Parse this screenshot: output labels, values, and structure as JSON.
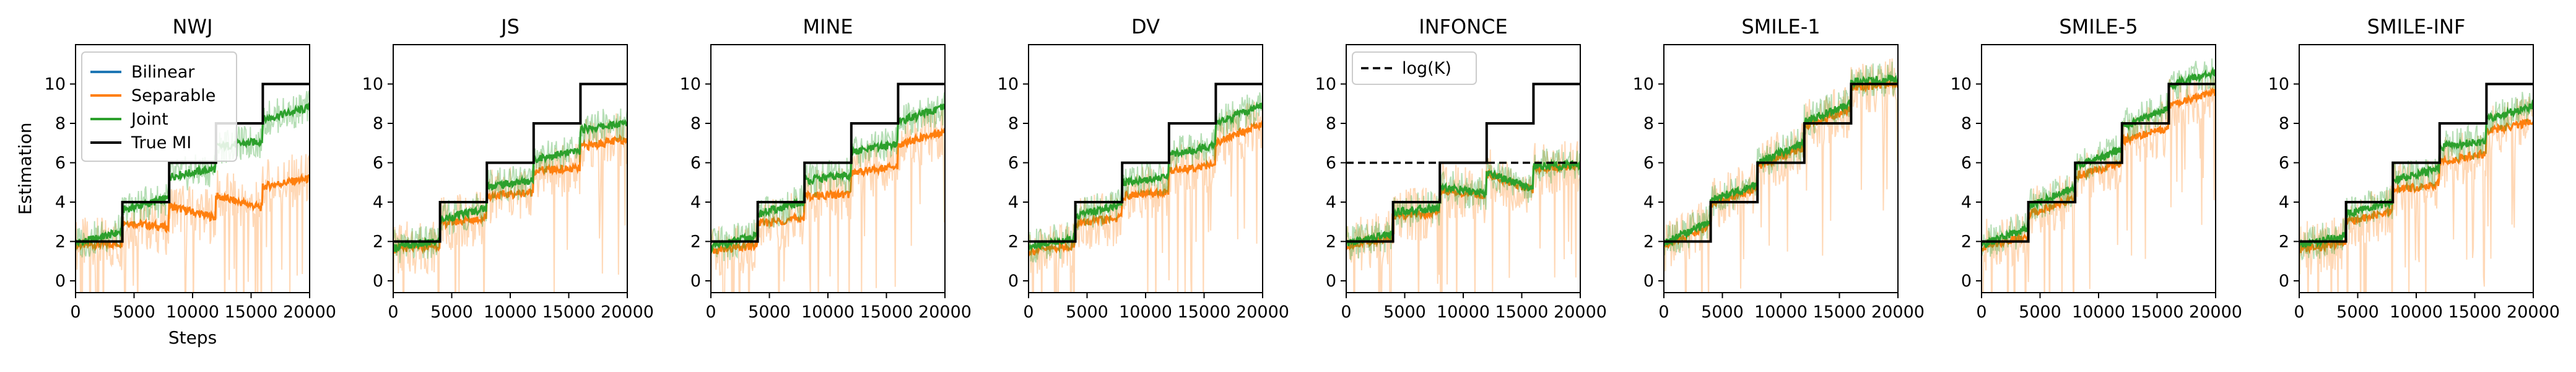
{
  "chart_data": {
    "type": "line",
    "shared": {
      "ylabel": "Estimation",
      "xlabel": "Steps",
      "xlim": [
        0,
        20000
      ],
      "ylim": [
        -0.6,
        12
      ],
      "xticks": [
        0,
        5000,
        10000,
        15000,
        20000
      ],
      "xtick_labels": [
        "0",
        "5000",
        "10000",
        "15000",
        "20000"
      ],
      "yticks": [
        0,
        2,
        4,
        6,
        8,
        10
      ],
      "ytick_labels": [
        "0",
        "2",
        "4",
        "6",
        "8",
        "10"
      ],
      "true_mi": {
        "name": "True MI",
        "x": [
          0,
          4000,
          4000,
          8000,
          8000,
          12000,
          12000,
          16000,
          16000,
          20000
        ],
        "y": [
          2,
          2,
          4,
          4,
          6,
          6,
          8,
          8,
          10,
          10
        ]
      },
      "colors": {
        "bilinear": "#1f77b4",
        "separable": "#ff7f0e",
        "joint": "#2ca02c",
        "true_mi": "#000000"
      }
    },
    "legend": [
      {
        "key": "bilinear",
        "label": "Bilinear"
      },
      {
        "key": "separable",
        "label": "Separable"
      },
      {
        "key": "joint",
        "label": "Joint"
      },
      {
        "key": "true_mi",
        "label": "True MI"
      }
    ],
    "panels": [
      {
        "title": "NWJ",
        "series": [
          {
            "name": "Separable",
            "color": "#ff7f0e",
            "x": [
              0,
              4000,
              8000,
              12000,
              16000,
              20000
            ],
            "y": [
              1.8,
              3.0,
              3.8,
              4.3,
              4.8,
              5.2
            ]
          },
          {
            "name": "Joint",
            "color": "#2ca02c",
            "x": [
              0,
              4000,
              8000,
              12000,
              16000,
              20000
            ],
            "y": [
              1.9,
              3.6,
              5.3,
              6.8,
              8.2,
              8.8
            ]
          }
        ]
      },
      {
        "title": "JS",
        "series": [
          {
            "name": "Separable",
            "color": "#ff7f0e",
            "x": [
              0,
              4000,
              8000,
              12000,
              16000,
              20000
            ],
            "y": [
              1.6,
              2.9,
              4.3,
              5.6,
              6.8,
              7.2
            ]
          },
          {
            "name": "Joint",
            "color": "#2ca02c",
            "x": [
              0,
              4000,
              8000,
              12000,
              16000,
              20000
            ],
            "y": [
              1.7,
              3.1,
              4.8,
              6.2,
              7.7,
              8.0
            ]
          }
        ]
      },
      {
        "title": "MINE",
        "series": [
          {
            "name": "Separable",
            "color": "#ff7f0e",
            "x": [
              0,
              4000,
              8000,
              12000,
              16000,
              20000
            ],
            "y": [
              1.5,
              2.9,
              4.3,
              5.5,
              6.9,
              7.6
            ]
          },
          {
            "name": "Joint",
            "color": "#2ca02c",
            "x": [
              0,
              4000,
              8000,
              12000,
              16000,
              20000
            ],
            "y": [
              1.7,
              3.4,
              5.1,
              6.5,
              8.1,
              8.8
            ]
          }
        ]
      },
      {
        "title": "DV",
        "series": [
          {
            "name": "Separable",
            "color": "#ff7f0e",
            "x": [
              0,
              4000,
              8000,
              12000,
              16000,
              20000
            ],
            "y": [
              1.5,
              2.9,
              4.3,
              5.6,
              7.0,
              8.0
            ]
          },
          {
            "name": "Joint",
            "color": "#2ca02c",
            "x": [
              0,
              4000,
              8000,
              12000,
              16000,
              20000
            ],
            "y": [
              1.7,
              3.3,
              5.0,
              6.4,
              8.0,
              8.9
            ]
          }
        ]
      },
      {
        "title": "INFONCE",
        "reference": {
          "label": "log(K)",
          "y": 6.0
        },
        "series": [
          {
            "name": "Separable",
            "color": "#ff7f0e",
            "x": [
              0,
              4000,
              8000,
              12000,
              16000,
              20000
            ],
            "y": [
              1.8,
              3.3,
              4.6,
              5.4,
              5.7,
              5.8
            ]
          },
          {
            "name": "Joint",
            "color": "#2ca02c",
            "x": [
              0,
              4000,
              8000,
              12000,
              16000,
              20000
            ],
            "y": [
              1.9,
              3.5,
              4.8,
              5.5,
              5.8,
              5.9
            ]
          }
        ]
      },
      {
        "title": "SMILE-1",
        "series": [
          {
            "name": "Separable",
            "color": "#ff7f0e",
            "x": [
              0,
              4000,
              8000,
              12000,
              16000,
              20000
            ],
            "y": [
              1.8,
              3.9,
              5.8,
              7.9,
              9.8,
              10.0
            ]
          },
          {
            "name": "Joint",
            "color": "#2ca02c",
            "x": [
              0,
              4000,
              8000,
              12000,
              16000,
              20000
            ],
            "y": [
              1.9,
              4.1,
              6.0,
              8.1,
              10.1,
              10.3
            ]
          }
        ]
      },
      {
        "title": "SMILE-5",
        "series": [
          {
            "name": "Separable",
            "color": "#ff7f0e",
            "x": [
              0,
              4000,
              8000,
              12000,
              16000,
              20000
            ],
            "y": [
              1.7,
              3.4,
              5.3,
              7.1,
              8.9,
              9.6
            ]
          },
          {
            "name": "Joint",
            "color": "#2ca02c",
            "x": [
              0,
              4000,
              8000,
              12000,
              16000,
              20000
            ],
            "y": [
              1.8,
              3.8,
              5.8,
              7.8,
              9.9,
              10.6
            ]
          }
        ]
      },
      {
        "title": "SMILE-INF",
        "series": [
          {
            "name": "Separable",
            "color": "#ff7f0e",
            "x": [
              0,
              4000,
              8000,
              12000,
              16000,
              20000
            ],
            "y": [
              1.6,
              3.0,
              4.6,
              6.0,
              7.6,
              8.1
            ]
          },
          {
            "name": "Joint",
            "color": "#2ca02c",
            "x": [
              0,
              4000,
              8000,
              12000,
              16000,
              20000
            ],
            "y": [
              1.8,
              3.4,
              5.1,
              6.8,
              8.2,
              8.9
            ]
          }
        ]
      }
    ]
  }
}
